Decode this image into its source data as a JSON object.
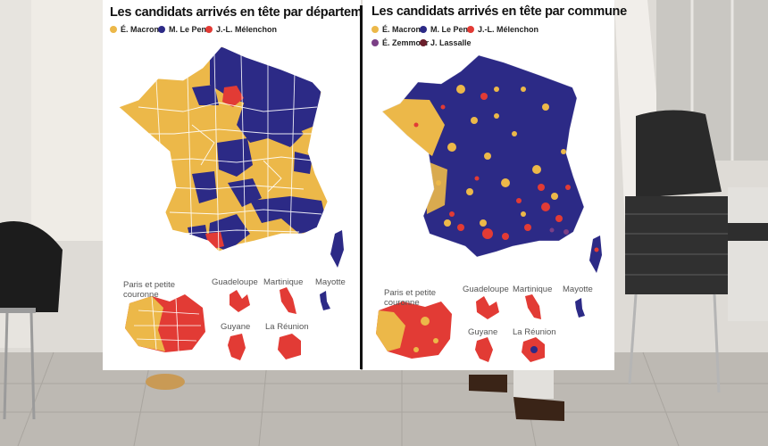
{
  "colors": {
    "macron": "#ecb849",
    "lepen": "#2c2a86",
    "melenchon": "#e23b35",
    "zemmour": "#7b3f86",
    "lassalle": "#6a1f2c"
  },
  "left_panel": {
    "title": "Les candidats arrivés en tête par département",
    "legend": [
      "É. Macron",
      "M. Le Pen",
      "J.-L. Mélenchon"
    ],
    "insets": {
      "paris": "Paris et petite couronne",
      "guadeloupe": "Guadeloupe",
      "martinique": "Martinique",
      "mayotte": "Mayotte",
      "guyane": "Guyane",
      "reunion": "La Réunion"
    }
  },
  "right_panel": {
    "title": "Les candidats arrivés en tête par commune",
    "legend": [
      "É. Macron",
      "M. Le Pen",
      "J.-L. Mélenchon",
      "É. Zemmour",
      "J. Lassalle"
    ],
    "insets": {
      "paris": "Paris et petite couronne",
      "guadeloupe": "Guadeloupe",
      "martinique": "Martinique",
      "mayotte": "Mayotte",
      "guyane": "Guyane",
      "reunion": "La Réunion"
    }
  }
}
